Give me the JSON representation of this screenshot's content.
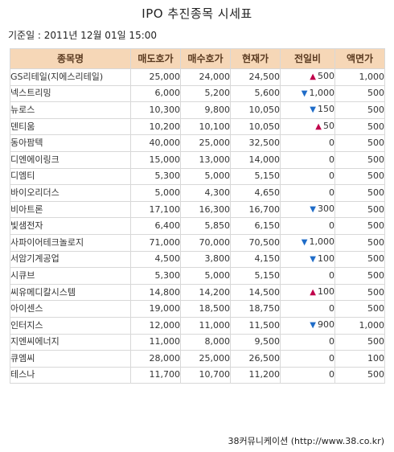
{
  "title": "IPO 추진종목 시세표",
  "base_date": "기준일 : 2011년 12월 01일 15:00",
  "columns": [
    "종목명",
    "매도호가",
    "매수호가",
    "현재가",
    "전일비",
    "액면가"
  ],
  "rows": [
    {
      "name": "GS리테일(지에스리테일)",
      "ask": "25,000",
      "bid": "24,000",
      "price": "24,500",
      "dir": "up",
      "change": "500",
      "par": "1,000"
    },
    {
      "name": "넥스트리밍",
      "ask": "6,000",
      "bid": "5,200",
      "price": "5,600",
      "dir": "down",
      "change": "1,000",
      "par": "500"
    },
    {
      "name": "뉴로스",
      "ask": "10,300",
      "bid": "9,800",
      "price": "10,050",
      "dir": "down",
      "change": "150",
      "par": "500"
    },
    {
      "name": "덴티움",
      "ask": "10,200",
      "bid": "10,100",
      "price": "10,050",
      "dir": "up",
      "change": "50",
      "par": "500"
    },
    {
      "name": "동아팜텍",
      "ask": "40,000",
      "bid": "25,000",
      "price": "32,500",
      "dir": "",
      "change": "0",
      "par": "500"
    },
    {
      "name": "디엔에이링크",
      "ask": "15,000",
      "bid": "13,000",
      "price": "14,000",
      "dir": "",
      "change": "0",
      "par": "500"
    },
    {
      "name": "디엠티",
      "ask": "5,300",
      "bid": "5,000",
      "price": "5,150",
      "dir": "",
      "change": "0",
      "par": "500"
    },
    {
      "name": "바이오리더스",
      "ask": "5,000",
      "bid": "4,300",
      "price": "4,650",
      "dir": "",
      "change": "0",
      "par": "500"
    },
    {
      "name": "비아트론",
      "ask": "17,100",
      "bid": "16,300",
      "price": "16,700",
      "dir": "down",
      "change": "300",
      "par": "500"
    },
    {
      "name": "빛샘전자",
      "ask": "6,400",
      "bid": "5,850",
      "price": "6,150",
      "dir": "",
      "change": "0",
      "par": "500"
    },
    {
      "name": "사파이어테크놀로지",
      "ask": "71,000",
      "bid": "70,000",
      "price": "70,500",
      "dir": "down",
      "change": "1,000",
      "par": "500"
    },
    {
      "name": "서암기계공업",
      "ask": "4,500",
      "bid": "3,800",
      "price": "4,150",
      "dir": "down",
      "change": "100",
      "par": "500"
    },
    {
      "name": "시큐브",
      "ask": "5,300",
      "bid": "5,000",
      "price": "5,150",
      "dir": "",
      "change": "0",
      "par": "500"
    },
    {
      "name": "씨유메디칼시스템",
      "ask": "14,800",
      "bid": "14,200",
      "price": "14,500",
      "dir": "up",
      "change": "100",
      "par": "500"
    },
    {
      "name": "아이센스",
      "ask": "19,000",
      "bid": "18,500",
      "price": "18,750",
      "dir": "",
      "change": "0",
      "par": "500"
    },
    {
      "name": "인터지스",
      "ask": "12,000",
      "bid": "11,000",
      "price": "11,500",
      "dir": "down",
      "change": "900",
      "par": "1,000"
    },
    {
      "name": "지엔씨에너지",
      "ask": "11,000",
      "bid": "8,000",
      "price": "9,500",
      "dir": "",
      "change": "0",
      "par": "500"
    },
    {
      "name": "큐엠씨",
      "ask": "28,000",
      "bid": "25,000",
      "price": "26,500",
      "dir": "",
      "change": "0",
      "par": "100"
    },
    {
      "name": "테스나",
      "ask": "11,700",
      "bid": "10,700",
      "price": "11,200",
      "dir": "",
      "change": "0",
      "par": "500"
    }
  ],
  "source": "38커뮤니케이션 (http://www.38.co.kr)",
  "colors": {
    "header_bg": "#f6d7b7",
    "up": "#c0004b",
    "down": "#1f6cc8"
  }
}
